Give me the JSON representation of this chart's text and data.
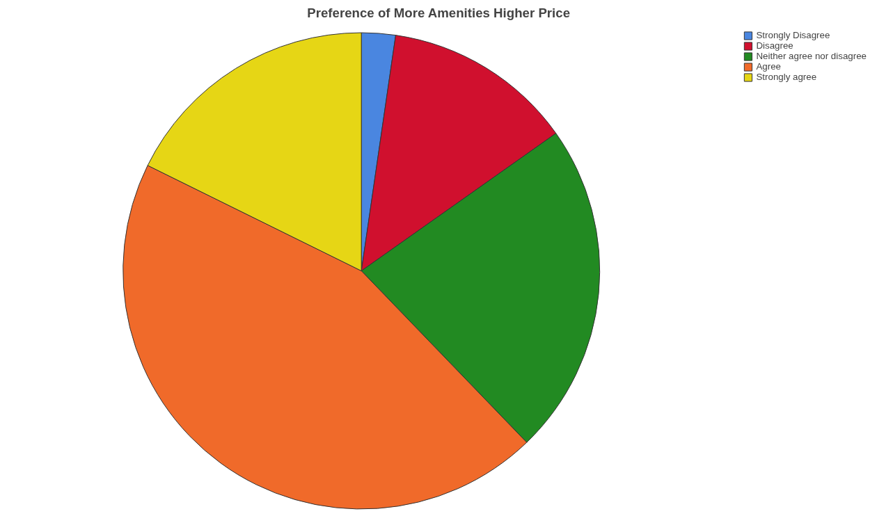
{
  "chart_data": {
    "type": "pie",
    "title": "Preference of More Amenities Higher Price",
    "categories": [
      "Strongly Disagree",
      "Disagree",
      "Neither agree nor disagree",
      "Agree",
      "Strongly agree"
    ],
    "values": [
      2.3,
      12.9,
      22.6,
      44.5,
      17.7
    ],
    "colors": [
      "#4a86e0",
      "#d0102e",
      "#228a22",
      "#f06a2a",
      "#e6d615"
    ],
    "legend": "top right"
  }
}
